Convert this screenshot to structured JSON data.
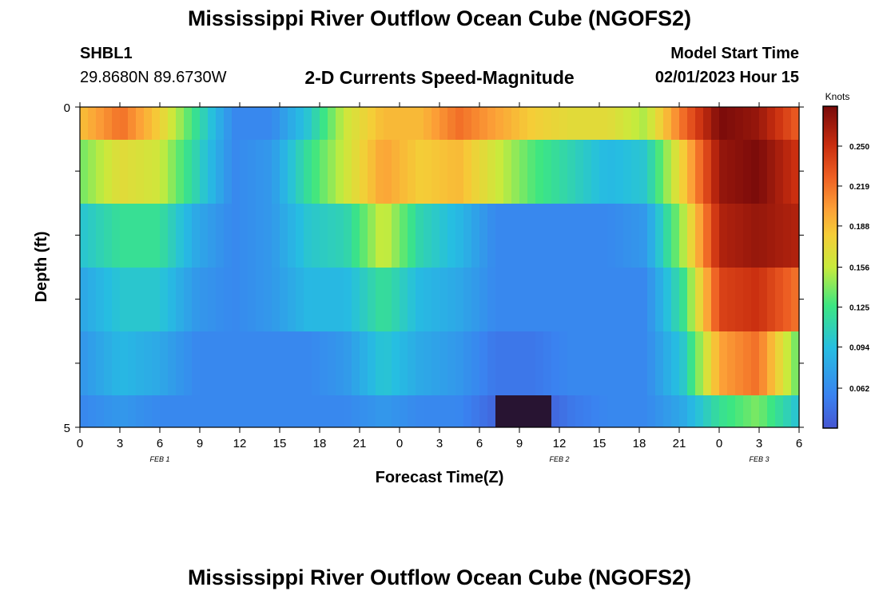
{
  "header": {
    "title": "Mississippi River Outflow Ocean Cube (NGOFS2)",
    "station_id": "SHBL1",
    "coordinates": "29.8680N  89.6730W",
    "subtitle": "2-D Currents Speed-Magnitude",
    "model_start_label": "Model Start Time",
    "model_start_value": "02/01/2023 Hour 15"
  },
  "footer": {
    "title": "Mississippi River Outflow Ocean Cube (NGOFS2)"
  },
  "chart_data": {
    "type": "heatmap",
    "title": "2-D Currents Speed-Magnitude",
    "xlabel": "Forecast Time(Z)",
    "ylabel": "Depth (ft)",
    "x_tick_labels": [
      "0",
      "3",
      "6",
      "9",
      "12",
      "15",
      "18",
      "21",
      "0",
      "3",
      "6",
      "9",
      "12",
      "15",
      "18",
      "21",
      "0",
      "3",
      "6"
    ],
    "x_date_labels": [
      {
        "label": "FEB 1",
        "tick_index": 2
      },
      {
        "label": "FEB 2",
        "tick_index": 12
      },
      {
        "label": "FEB 3",
        "tick_index": 17
      }
    ],
    "y_tick_labels": [
      "0",
      "5"
    ],
    "ylim": [
      0,
      5
    ],
    "x_hours_start": 0,
    "x_hours_end": 54,
    "colorbar": {
      "label": "Knots",
      "tick_labels": [
        "0.062",
        "0.094",
        "0.125",
        "0.156",
        "0.188",
        "0.219",
        "0.250"
      ],
      "min": 0.031,
      "max": 0.281
    },
    "depth_layers": [
      {
        "keys": [
          0,
          0,
          0.36,
          0.5,
          0.77,
          0.87,
          1.0,
          1.3,
          1.52,
          1.72,
          1.95,
          2.1,
          2.2,
          2.25,
          2.3,
          2.4,
          2.5,
          2.55,
          2.6,
          2.7
        ],
        "values": [
          0.19,
          0.22,
          0.18,
          0.12,
          0.06,
          0.06,
          0.1,
          0.16,
          0.19,
          0.19,
          0.22,
          0.2,
          0.18,
          0.17,
          0.17,
          0.15,
          0.22,
          0.28,
          0.27,
          0.23
        ]
      },
      {
        "keys": [
          0,
          0,
          0.36,
          0.5,
          0.77,
          0.87,
          1.0,
          1.3,
          1.52,
          1.72,
          1.95,
          2.1,
          2.2,
          2.25,
          2.3,
          2.4,
          2.5,
          2.55,
          2.6,
          2.7
        ],
        "values": [
          0.14,
          0.17,
          0.16,
          0.11,
          0.06,
          0.07,
          0.12,
          0.16,
          0.2,
          0.18,
          0.19,
          0.16,
          0.13,
          0.11,
          0.09,
          0.1,
          0.18,
          0.27,
          0.28,
          0.25
        ]
      },
      {
        "keys": [
          0,
          0,
          0.36,
          0.5,
          0.77,
          0.87,
          1.0,
          1.3,
          1.52,
          1.72,
          1.95,
          2.1,
          2.2,
          2.25,
          2.3,
          2.4,
          2.5,
          2.55,
          2.6,
          2.7
        ],
        "values": [
          0.1,
          0.12,
          0.12,
          0.08,
          0.06,
          0.07,
          0.1,
          0.11,
          0.16,
          0.11,
          0.09,
          0.06,
          0.06,
          0.06,
          0.06,
          0.07,
          0.15,
          0.26,
          0.27,
          0.26
        ]
      },
      {
        "keys": [
          0,
          0,
          0.36,
          0.5,
          0.77,
          0.87,
          1.0,
          1.3,
          1.52,
          1.72,
          1.95,
          2.1,
          2.2,
          2.25,
          2.3,
          2.4,
          2.5,
          2.55,
          2.6,
          2.7
        ],
        "values": [
          0.08,
          0.1,
          0.1,
          0.07,
          0.06,
          0.07,
          0.09,
          0.09,
          0.12,
          0.09,
          0.08,
          0.06,
          0.06,
          0.06,
          0.06,
          0.06,
          0.12,
          0.24,
          0.25,
          0.22
        ]
      },
      {
        "keys": [
          0,
          0,
          0.36,
          0.5,
          0.77,
          0.87,
          1.0,
          1.3,
          1.52,
          1.72,
          1.95,
          2.1,
          2.2,
          2.25,
          2.3,
          2.4,
          2.5,
          2.55,
          2.6,
          2.7
        ],
        "values": [
          0.07,
          0.09,
          0.08,
          0.06,
          0.06,
          0.06,
          0.06,
          0.07,
          0.1,
          0.08,
          0.07,
          0.05,
          0.05,
          0.06,
          0.06,
          0.06,
          0.1,
          0.2,
          0.22,
          0.14
        ]
      },
      {
        "keys": [
          0,
          0,
          0.36,
          0.5,
          0.77,
          0.87,
          1.0,
          1.3,
          1.52,
          1.72,
          1.95,
          2.1,
          2.2,
          2.25,
          2.3,
          2.4,
          2.5,
          2.55,
          2.6,
          2.7
        ],
        "values": [
          0.06,
          0.07,
          0.06,
          0.06,
          0.06,
          0.06,
          0.06,
          0.06,
          0.07,
          0.06,
          0.06,
          0.04,
          0.03,
          0.05,
          0.06,
          0.06,
          0.08,
          0.12,
          0.14,
          0.1
        ]
      }
    ]
  }
}
